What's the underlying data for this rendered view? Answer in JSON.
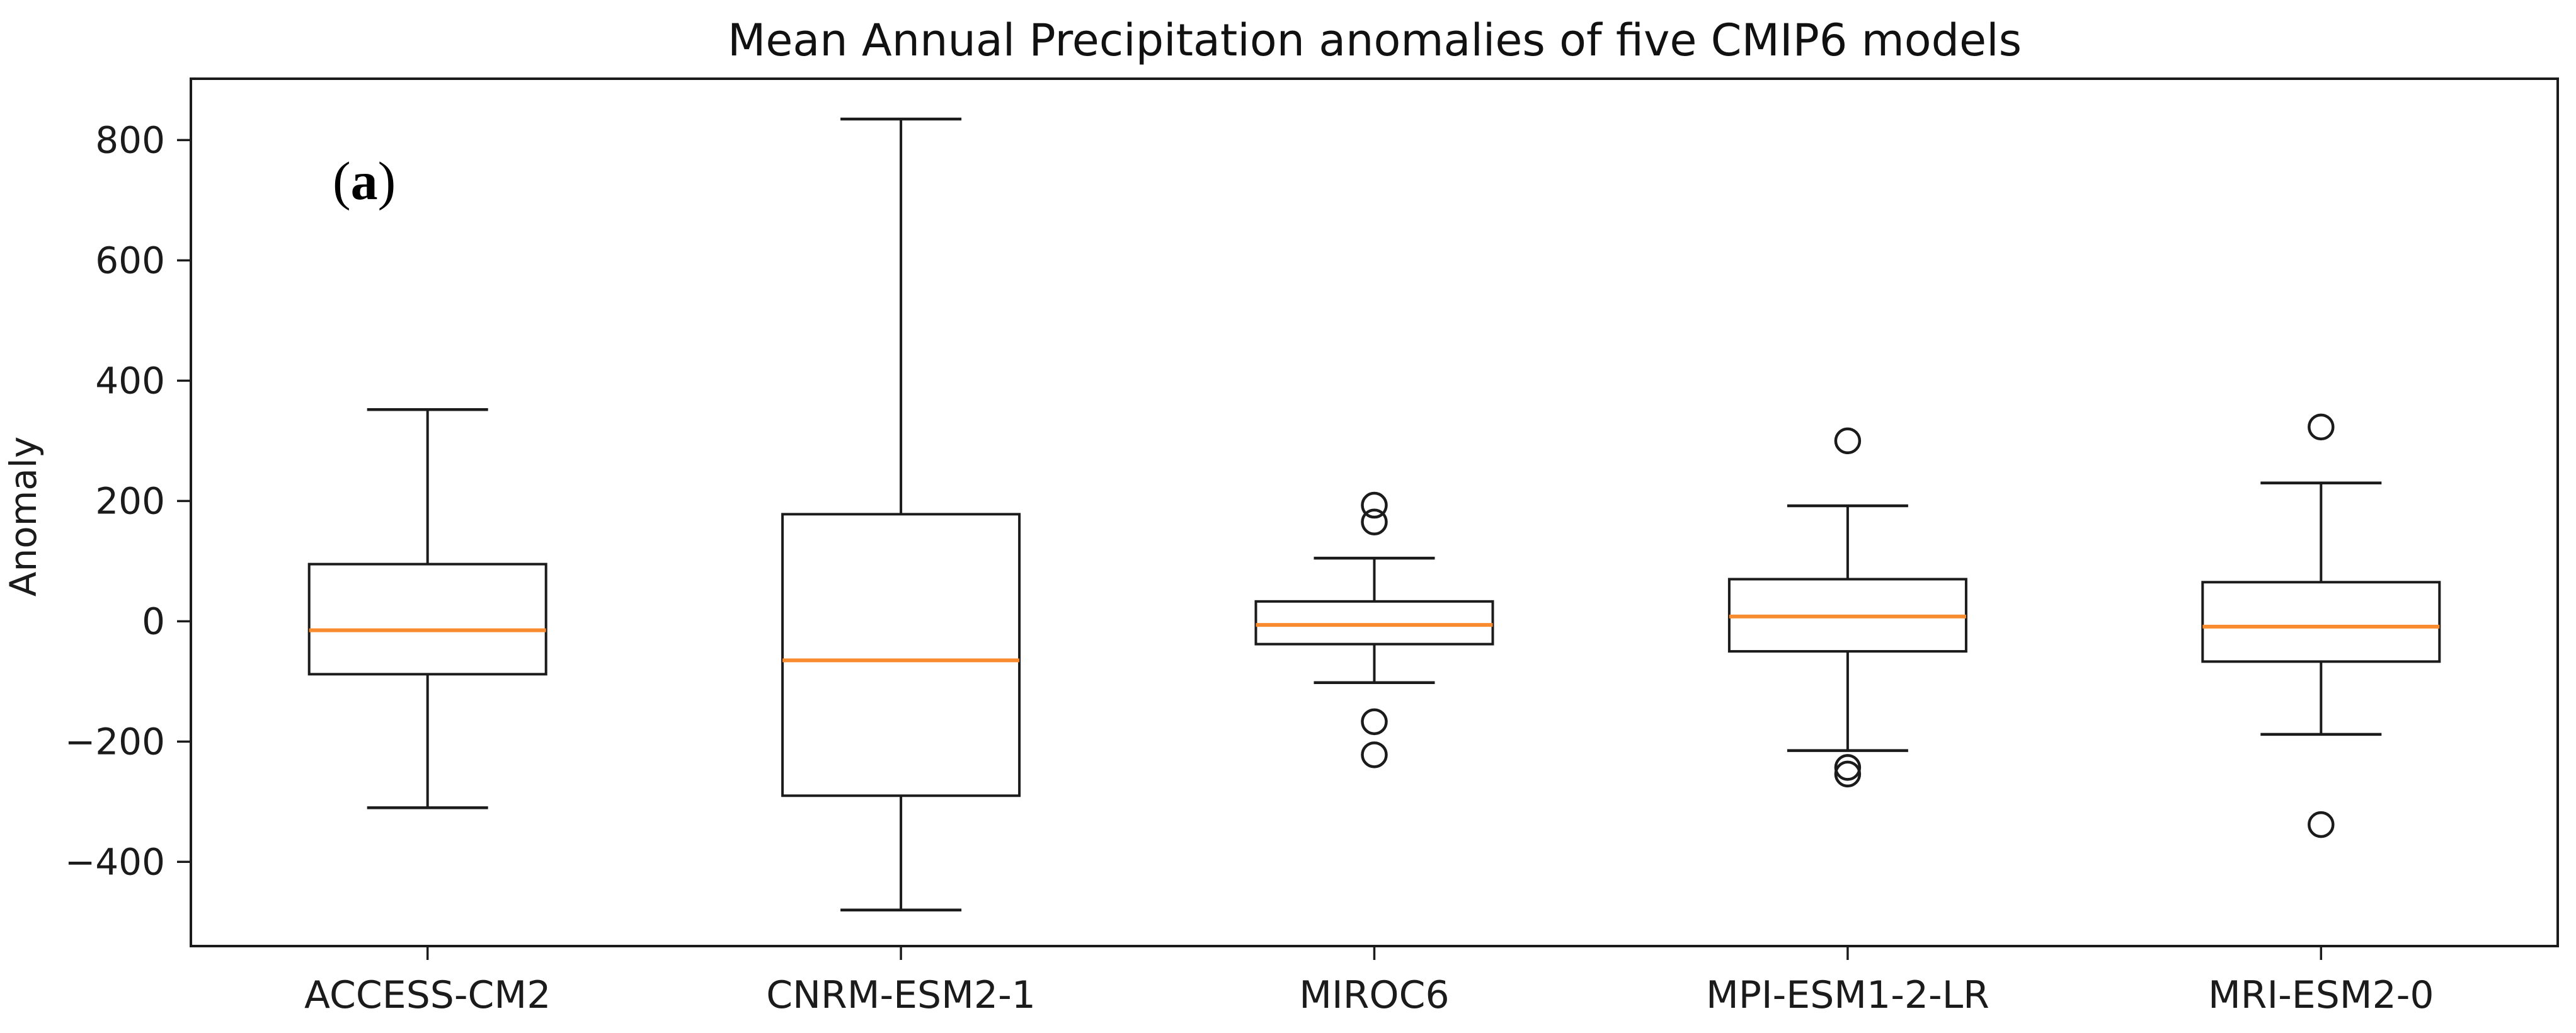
{
  "chart_data": {
    "type": "boxplot",
    "title": "Mean Annual Precipitation anomalies of five CMIP6 models",
    "ylabel": "Anomaly",
    "xlabel": "",
    "figure_label": {
      "open": "(",
      "letter": "a",
      "close": ")"
    },
    "ylim": [
      -540,
      902
    ],
    "yticks": [
      800,
      600,
      400,
      200,
      0,
      -200,
      -400
    ],
    "grid": false,
    "legend": null,
    "categories": [
      "ACCESS-CM2",
      "CNRM-ESM2-1",
      "MIROC6",
      "MPI-ESM1-2-LR",
      "MRI-ESM2-0"
    ],
    "series": [
      {
        "name": "ACCESS-CM2",
        "whisker_low": -310,
        "q1": -88,
        "median": -15,
        "q3": 95,
        "whisker_high": 352,
        "outliers": []
      },
      {
        "name": "CNRM-ESM2-1",
        "whisker_low": -480,
        "q1": -290,
        "median": -65,
        "q3": 178,
        "whisker_high": 835,
        "outliers": []
      },
      {
        "name": "MIROC6",
        "whisker_low": -102,
        "q1": -38,
        "median": -6,
        "q3": 33,
        "whisker_high": 105,
        "outliers": [
          193,
          165,
          -167,
          -222
        ]
      },
      {
        "name": "MPI-ESM1-2-LR",
        "whisker_low": -215,
        "q1": -50,
        "median": 8,
        "q3": 70,
        "whisker_high": 192,
        "outliers": [
          300,
          -243,
          -254
        ]
      },
      {
        "name": "MRI-ESM2-0",
        "whisker_low": -188,
        "q1": -67,
        "median": -9,
        "q3": 65,
        "whisker_high": 230,
        "outliers": [
          323,
          -338
        ]
      }
    ],
    "colors": {
      "median_line": "#f78b2e",
      "box_edge": "#1b1b1b",
      "axis": "#1b1b1b",
      "background": "#ffffff"
    }
  }
}
